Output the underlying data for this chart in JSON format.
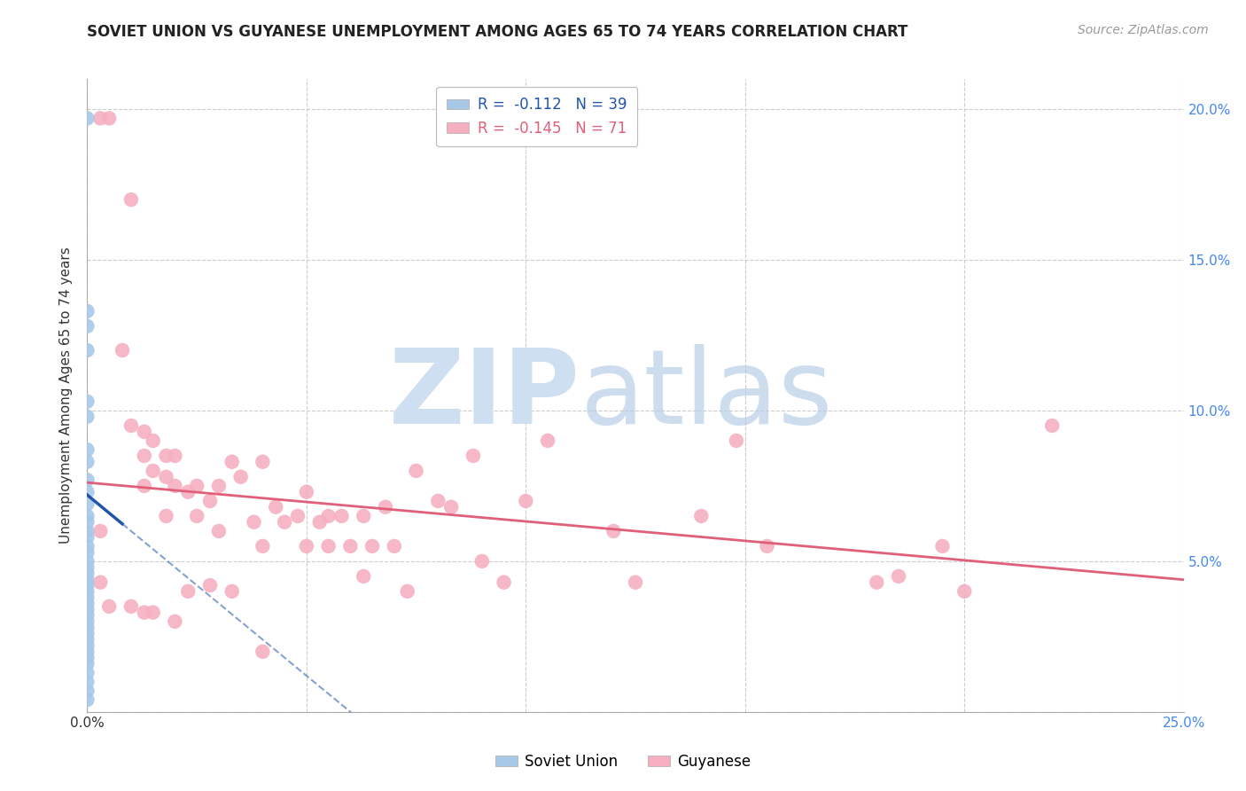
{
  "title": "SOVIET UNION VS GUYANESE UNEMPLOYMENT AMONG AGES 65 TO 74 YEARS CORRELATION CHART",
  "source": "Source: ZipAtlas.com",
  "ylabel": "Unemployment Among Ages 65 to 74 years",
  "xlim": [
    0.0,
    0.25
  ],
  "ylim": [
    0.0,
    0.21
  ],
  "xticks": [
    0.0,
    0.05,
    0.1,
    0.15,
    0.2,
    0.25
  ],
  "yticks": [
    0.0,
    0.05,
    0.1,
    0.15,
    0.2
  ],
  "xticklabels": [
    "0.0%",
    "",
    "",
    "",
    "",
    "25.0%"
  ],
  "yticklabels_left": [
    "",
    "",
    "",
    "",
    ""
  ],
  "yticklabels_right": [
    "",
    "5.0%",
    "10.0%",
    "15.0%",
    "20.0%"
  ],
  "soviet_color": "#a8c8e8",
  "guyanese_color": "#f5afc0",
  "soviet_line_color": "#2255aa",
  "guyanese_line_color": "#e0607a",
  "soviet_R": "-0.112",
  "soviet_N": "39",
  "guyanese_R": "-0.145",
  "guyanese_N": "71",
  "legend_label_soviet": "Soviet Union",
  "legend_label_guyanese": "Guyanese",
  "soviet_x": [
    0.0,
    0.0,
    0.0,
    0.0,
    0.0,
    0.0,
    0.0,
    0.0,
    0.0,
    0.0,
    0.0,
    0.0,
    0.0,
    0.0,
    0.0,
    0.0,
    0.0,
    0.0,
    0.0,
    0.0,
    0.0,
    0.0,
    0.0,
    0.0,
    0.0,
    0.0,
    0.0,
    0.0,
    0.0,
    0.0,
    0.0,
    0.0,
    0.0,
    0.0,
    0.0,
    0.0,
    0.0,
    0.0,
    0.0
  ],
  "soviet_y": [
    0.197,
    0.133,
    0.128,
    0.12,
    0.103,
    0.098,
    0.087,
    0.083,
    0.077,
    0.073,
    0.069,
    0.065,
    0.063,
    0.06,
    0.058,
    0.055,
    0.053,
    0.05,
    0.048,
    0.046,
    0.044,
    0.042,
    0.04,
    0.038,
    0.036,
    0.034,
    0.032,
    0.03,
    0.028,
    0.026,
    0.024,
    0.022,
    0.02,
    0.018,
    0.016,
    0.013,
    0.01,
    0.007,
    0.004
  ],
  "guyanese_x": [
    0.003,
    0.003,
    0.005,
    0.008,
    0.01,
    0.01,
    0.013,
    0.013,
    0.013,
    0.015,
    0.015,
    0.018,
    0.018,
    0.018,
    0.02,
    0.02,
    0.023,
    0.025,
    0.025,
    0.028,
    0.03,
    0.03,
    0.033,
    0.035,
    0.038,
    0.04,
    0.04,
    0.043,
    0.045,
    0.048,
    0.05,
    0.05,
    0.053,
    0.055,
    0.055,
    0.058,
    0.06,
    0.063,
    0.063,
    0.065,
    0.068,
    0.07,
    0.073,
    0.075,
    0.08,
    0.083,
    0.088,
    0.09,
    0.095,
    0.1,
    0.105,
    0.12,
    0.125,
    0.14,
    0.148,
    0.155,
    0.18,
    0.185,
    0.195,
    0.2,
    0.003,
    0.005,
    0.01,
    0.013,
    0.015,
    0.02,
    0.023,
    0.028,
    0.033,
    0.04,
    0.22
  ],
  "guyanese_y": [
    0.197,
    0.06,
    0.197,
    0.12,
    0.17,
    0.095,
    0.093,
    0.085,
    0.075,
    0.09,
    0.08,
    0.085,
    0.078,
    0.065,
    0.085,
    0.075,
    0.073,
    0.075,
    0.065,
    0.07,
    0.075,
    0.06,
    0.083,
    0.078,
    0.063,
    0.083,
    0.055,
    0.068,
    0.063,
    0.065,
    0.073,
    0.055,
    0.063,
    0.065,
    0.055,
    0.065,
    0.055,
    0.065,
    0.045,
    0.055,
    0.068,
    0.055,
    0.04,
    0.08,
    0.07,
    0.068,
    0.085,
    0.05,
    0.043,
    0.07,
    0.09,
    0.06,
    0.043,
    0.065,
    0.09,
    0.055,
    0.043,
    0.045,
    0.055,
    0.04,
    0.043,
    0.035,
    0.035,
    0.033,
    0.033,
    0.03,
    0.04,
    0.042,
    0.04,
    0.02,
    0.095
  ]
}
